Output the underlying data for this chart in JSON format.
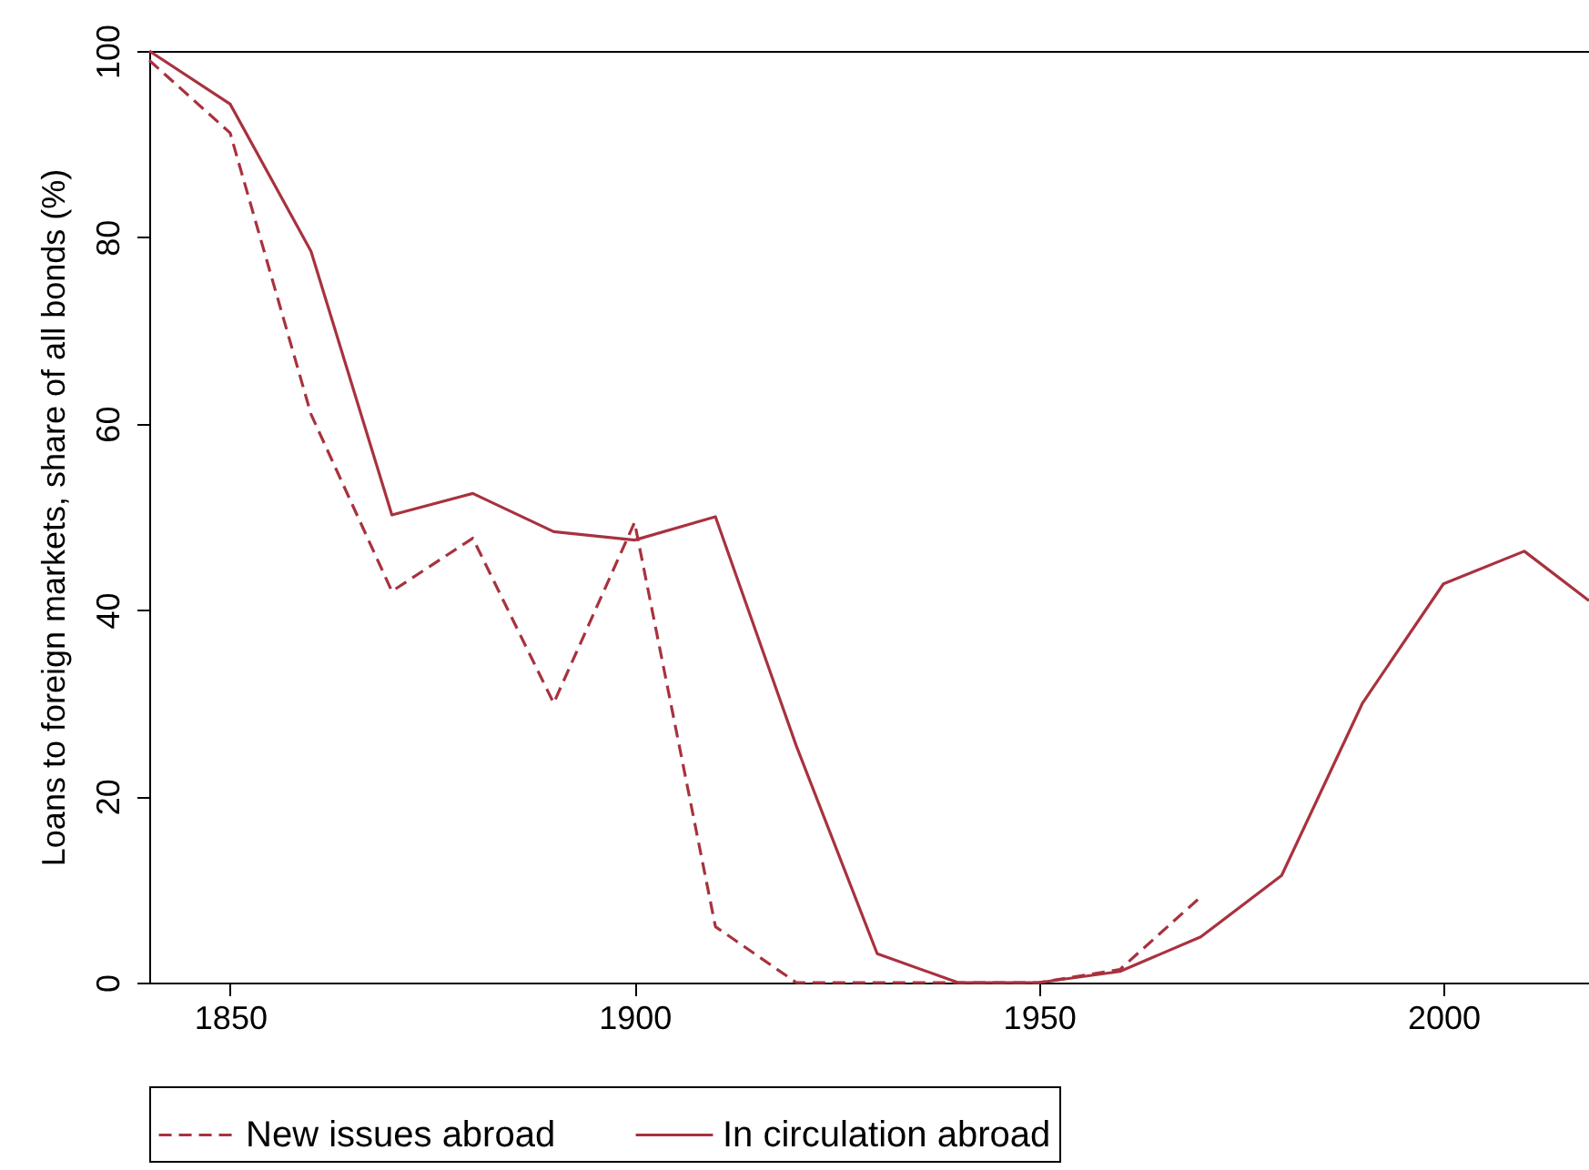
{
  "chart_data": {
    "type": "line",
    "ylabel": "Loans to foreign markets, share of all bonds (%)",
    "x": [
      1840,
      1850,
      1860,
      1870,
      1880,
      1890,
      1900,
      1910,
      1920,
      1930,
      1940,
      1950,
      1960,
      1970,
      1980,
      1990,
      2000,
      2010,
      2018
    ],
    "series": [
      {
        "name": "New issues abroad",
        "color": "#a8323e",
        "line_style": "dashed",
        "values": [
          99,
          91.2,
          61,
          42,
          47.7,
          30,
          49.4,
          6,
          0,
          0,
          0,
          0,
          1.4,
          9.2,
          null,
          null,
          null,
          null,
          null
        ]
      },
      {
        "name": "In circulation abroad",
        "color": "#a8323e",
        "line_style": "solid",
        "values": [
          100,
          94.3,
          78.5,
          50.2,
          52.5,
          48.4,
          47.5,
          50,
          25.4,
          3.1,
          0,
          0,
          1.2,
          4.9,
          11.5,
          30,
          42.8,
          46.3,
          41
        ]
      }
    ],
    "xlim": [
      1840,
      2018
    ],
    "xticks": [
      1850,
      1900,
      1950,
      2000
    ],
    "ylim": [
      0,
      100
    ],
    "yticks": [
      0,
      20,
      40,
      60,
      80,
      100
    ],
    "grid": false,
    "legend": "bottom"
  }
}
